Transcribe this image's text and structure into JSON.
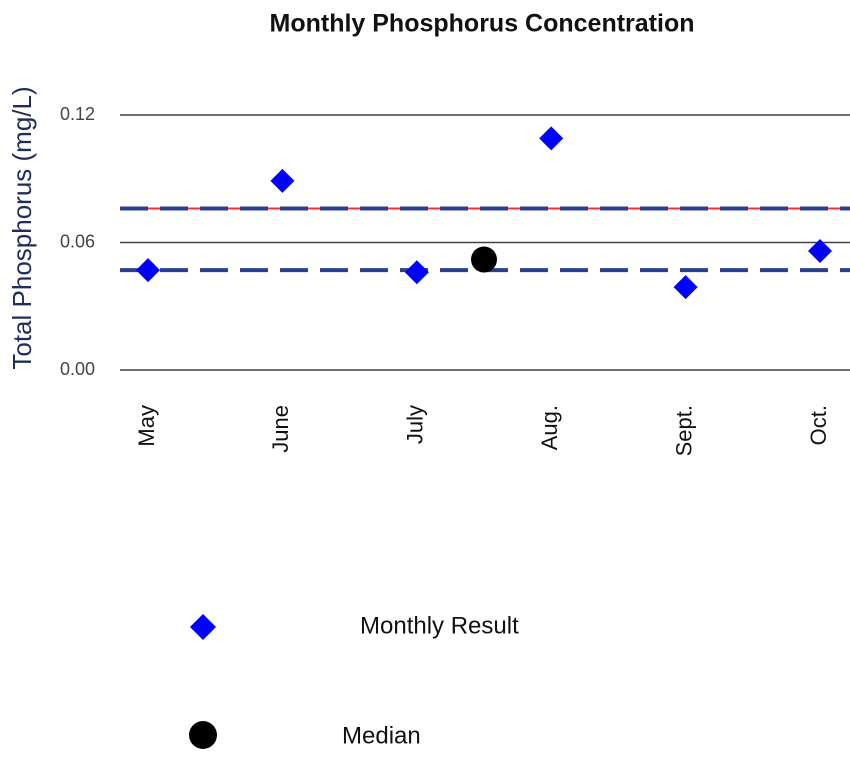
{
  "chart_data": {
    "type": "scatter",
    "title": "Monthly Phosphorus Concentration",
    "y_label": "Total Phosphorus (mg/L)",
    "categories": [
      "May",
      "June",
      "July",
      "Aug.",
      "Sept.",
      "Oct."
    ],
    "series": [
      {
        "name": "Monthly Result",
        "color": "#0000ff",
        "marker": "diamond",
        "values": [
          0.047,
          0.089,
          0.046,
          0.109,
          0.039,
          0.056
        ]
      }
    ],
    "median": {
      "name": "Median",
      "color": "#000000",
      "marker": "circle",
      "value": 0.052
    },
    "reference_lines": [
      {
        "value": 0.076,
        "color": "#ff3030",
        "style": "solid"
      },
      {
        "value": 0.076,
        "color": "#2a3f8f",
        "style": "dashed"
      },
      {
        "value": 0.047,
        "color": "#2a3f8f",
        "style": "dashed"
      }
    ],
    "ylim": [
      0,
      0.12
    ],
    "yticks": [
      {
        "value": 0,
        "label": "0.00"
      },
      0.06,
      0.12
    ],
    "grid": true
  }
}
